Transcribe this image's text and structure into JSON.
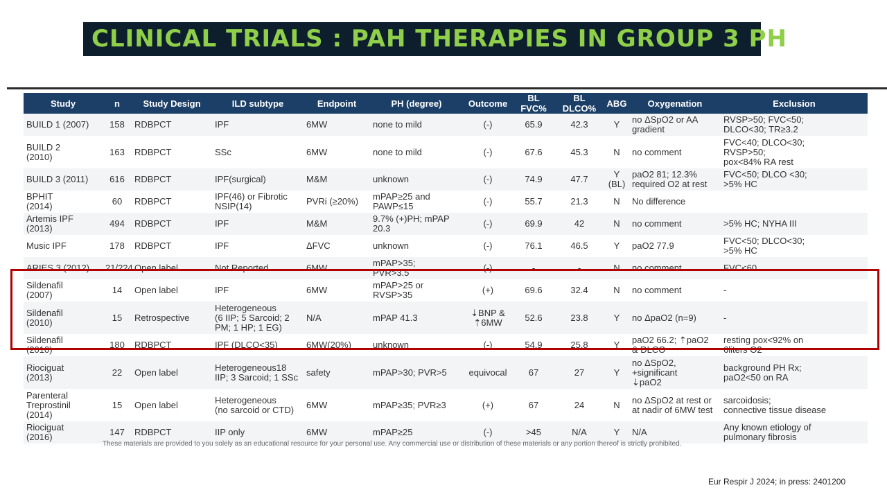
{
  "title": "CLINICAL TRIALS : PAH THERAPIES IN GROUP 3 PH",
  "columns": [
    "Study",
    "n",
    "Study Design",
    "ILD subtype",
    "Endpoint",
    "PH (degree)",
    "Outcome",
    "BL FVC%",
    "BL DLCO%",
    "ABG",
    "Oxygenation",
    "Exclusion"
  ],
  "rows": [
    {
      "study": "BUILD 1 (2007)",
      "n": "158",
      "design": "RDBPCT",
      "ild": "IPF",
      "endpoint": "6MW",
      "ph": "none to mild",
      "outcome": "(-)",
      "fvc": "65.9",
      "dlco": "42.3",
      "abg": "Y",
      "oxygenation": "no ΔSpO2 or AA\ngradient",
      "exclusion": "RVSP>50; FVC<50;\nDLCO<30; TR≥3.2"
    },
    {
      "study": "BUILD 2\n(2010)",
      "n": "163",
      "design": "RDBPCT",
      "ild": "SSc",
      "endpoint": "6MW",
      "ph": "none to mild",
      "outcome": "(-)",
      "fvc": "67.6",
      "dlco": "45.3",
      "abg": "N",
      "oxygenation": "no comment",
      "exclusion": "FVC<40; DLCO<30;\nRVSP>50;\npox<84% RA rest"
    },
    {
      "study": "BUILD 3 (2011)",
      "n": "616",
      "design": "RDBPCT",
      "ild": "IPF(surgical)",
      "endpoint": "M&M",
      "ph": "unknown",
      "outcome": "(-)",
      "fvc": "74.9",
      "dlco": "47.7",
      "abg": "Y\n(BL)",
      "oxygenation": "paO2 81; 12.3%\nrequired O2 at rest",
      "exclusion": "FVC<50; DLCO <30;\n>5% HC"
    },
    {
      "study": "BPHIT\n(2014)",
      "n": "60",
      "design": "RDBPCT",
      "ild": "IPF(46) or Fibrotic\nNSIP(14)",
      "endpoint": "PVRi (≥20%)",
      "ph": "mPAP≥25 and\nPAWP≤15",
      "outcome": "(-)",
      "fvc": "55.7",
      "dlco": "21.3",
      "abg": "N",
      "oxygenation": "No difference",
      "exclusion": ""
    },
    {
      "study": "Artemis IPF\n(2013)",
      "n": "494",
      "design": "RDBPCT",
      "ild": "IPF",
      "endpoint": "M&M",
      "ph": "9.7% (+)PH; mPAP\n20.3",
      "outcome": "(-)",
      "fvc": "69.9",
      "dlco": "42",
      "abg": "N",
      "oxygenation": "no comment",
      "exclusion": ">5% HC; NYHA III"
    },
    {
      "study": "Music IPF",
      "n": "178",
      "design": "RDBPCT",
      "ild": "IPF",
      "endpoint": "ΔFVC",
      "ph": "unknown",
      "outcome": "(-)",
      "fvc": "76.1",
      "dlco": "46.5",
      "abg": "Y",
      "oxygenation": "paO2 77.9",
      "exclusion": "FVC<50; DLCO<30;\n>5% HC"
    },
    {
      "study": "ARIES 3 (2012)",
      "n": "21/224",
      "design": "Open label",
      "ild": "Not Reported",
      "endpoint": "6MW",
      "ph": "mPAP>35;\nPVR>3.5",
      "outcome": "(-)",
      "fvc": "-",
      "dlco": "-",
      "abg": "N",
      "oxygenation": "no comment",
      "exclusion": "FVC<60"
    },
    {
      "study": "Sildenafil\n(2007)",
      "n": "14",
      "design": "Open label",
      "ild": "IPF",
      "endpoint": "6MW",
      "ph": "mPAP>25 or\nRVSP>35",
      "outcome": "(+)",
      "fvc": "69.6",
      "dlco": "32.4",
      "abg": "N",
      "oxygenation": "no comment",
      "exclusion": "-"
    },
    {
      "study": "Sildenafil\n(2010)",
      "n": "15",
      "design": "Retrospective",
      "ild": "Heterogeneous\n(6 IIP; 5 Sarcoid; 2\nPM; 1 HP; 1 EG)",
      "endpoint": "N/A",
      "ph": "mPAP 41.3",
      "outcome": "⇣BNP &\n⇡6MW",
      "fvc": "52.6",
      "dlco": "23.8",
      "abg": "Y",
      "oxygenation": "no ΔpaO2 (n=9)",
      "exclusion": "-"
    },
    {
      "study": "Sildenafil\n(2010)",
      "n": "180",
      "design": "RDBPCT",
      "ild": "IPF (DLCO<35)",
      "endpoint": "6MW(20%)",
      "ph": "unknown",
      "outcome": "(-)",
      "fvc": "54.9",
      "dlco": "25.8",
      "abg": "Y",
      "oxygenation": "paO2 66.2;  ⇡paO2\n& DLCO",
      "exclusion": "resting pox<92% on\n6liters O2"
    },
    {
      "study": "Riociguat\n(2013)",
      "n": "22",
      "design": "Open label",
      "ild": "Heterogeneous18\nIIP; 3 Sarcoid; 1 SSc",
      "endpoint": "safety",
      "ph": "mPAP>30; PVR>5",
      "outcome": "equivocal",
      "fvc": "67",
      "dlco": "27",
      "abg": "Y",
      "oxygenation": "no ΔSpO2,\n+significant\n⇣paO2",
      "exclusion": "background PH Rx;\npaO2<50 on RA"
    },
    {
      "study": "Parenteral\nTreprostinil\n(2014)",
      "n": "15",
      "design": "Open label",
      "ild": "Heterogeneous\n(no sarcoid or CTD)",
      "endpoint": "6MW",
      "ph": "mPAP≥35; PVR≥3",
      "outcome": "(+)",
      "fvc": "67",
      "dlco": "24",
      "abg": "N",
      "oxygenation": "no ΔSpO2 at rest or\nat nadir of 6MW test",
      "exclusion": "sarcoidosis;\nconnective tissue disease"
    },
    {
      "study": "Riociguat\n(2016)",
      "n": "147",
      "design": "RDBPCT",
      "ild": "IIP only",
      "endpoint": "6MW",
      "ph": "mPAP≥25",
      "outcome": "(-)",
      "fvc": ">45",
      "dlco": "N/A",
      "abg": "Y",
      "oxygenation": "N/A",
      "exclusion": "Any known etiology of\npulmonary fibrosis"
    }
  ],
  "disclaimer": "These materials are provided to you solely as an educational resource for your personal use. Any commercial use or distribution of these materials or any portion thereof is strictly prohibited.",
  "citation": "Eur Respir J 2024; in press: 2401200",
  "colors": {
    "title_bg": "#0d1f2d",
    "title_fg": "#8fcf4a",
    "header_bg": "#1b3f66",
    "highlight": "#b00000"
  }
}
